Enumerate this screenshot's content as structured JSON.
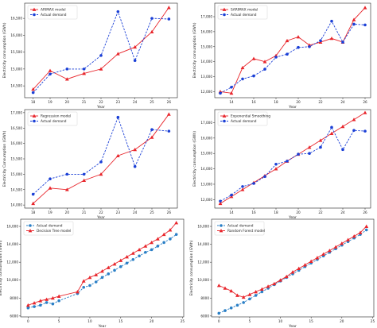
{
  "colors": {
    "model": "#e8252b",
    "actual": "#1a3fd6",
    "actual_light": "#2a7fc6"
  },
  "chart_data": [
    {
      "type": "line",
      "x": [
        18,
        19,
        20,
        21,
        22,
        23,
        24,
        25,
        26
      ],
      "series": [
        {
          "name": "ARIMAX model",
          "style": "solid-triangle",
          "values": [
            14400,
            14950,
            14700,
            14870,
            15000,
            15450,
            15650,
            16100,
            16820
          ]
        },
        {
          "name": "Actual demand",
          "style": "dashed-circle",
          "values": [
            14300,
            14850,
            15000,
            15000,
            15400,
            16700,
            15250,
            16500,
            16480
          ]
        }
      ],
      "xlabel": "Year",
      "ylabel": "Electricity consumption (GWh)",
      "xlim": [
        17.5,
        26.5
      ],
      "ylim": [
        14150,
        16950
      ],
      "xticks": [
        18,
        19,
        20,
        21,
        22,
        23,
        24,
        25,
        26
      ],
      "yticks": [
        14500,
        15000,
        15500,
        16000,
        16500
      ],
      "ytick_labels": [
        "14,500",
        "15,000",
        "15,500",
        "16,000",
        "16,500"
      ],
      "legend": "top-left"
    },
    {
      "type": "line",
      "x": [
        13,
        14,
        15,
        16,
        17,
        18,
        19,
        20,
        21,
        22,
        23,
        24,
        25,
        26
      ],
      "series": [
        {
          "name": "SARIMAX model",
          "style": "solid-triangle",
          "values": [
            12000,
            11900,
            13600,
            14200,
            14000,
            14400,
            15400,
            15650,
            15100,
            15300,
            15550,
            15300,
            16800,
            17600
          ]
        },
        {
          "name": "Actual demand",
          "style": "dashed-circle",
          "values": [
            11900,
            12300,
            12850,
            13050,
            13500,
            14300,
            14500,
            14950,
            15000,
            15400,
            16700,
            15300,
            16500,
            16450
          ]
        }
      ],
      "xlabel": "Year",
      "ylabel": "Electricity consumption (GWh)",
      "xlim": [
        12.5,
        26.5
      ],
      "ylim": [
        11600,
        17900
      ],
      "xticks": [
        14,
        16,
        18,
        20,
        22,
        24,
        26
      ],
      "yticks": [
        12000,
        13000,
        14000,
        15000,
        16000,
        17000
      ],
      "ytick_labels": [
        "12,000",
        "13,000",
        "14,000",
        "15,000",
        "16,000",
        "17,000"
      ],
      "legend": "top-left"
    },
    {
      "type": "line",
      "x": [
        18,
        19,
        20,
        21,
        22,
        23,
        24,
        25,
        26
      ],
      "series": [
        {
          "name": "Regression model",
          "style": "solid-triangle",
          "values": [
            14050,
            14550,
            14500,
            14800,
            15000,
            15600,
            15800,
            16200,
            16950
          ]
        },
        {
          "name": "Actual demand",
          "style": "dashed-circle",
          "values": [
            14350,
            14850,
            15000,
            15000,
            15400,
            16850,
            15250,
            16450,
            16400
          ]
        }
      ],
      "xlabel": "Year",
      "ylabel": "Electricity Consumption (GWh)",
      "xlim": [
        17.5,
        26.5
      ],
      "ylim": [
        13900,
        17100
      ],
      "xticks": [
        18,
        19,
        20,
        21,
        22,
        23,
        24,
        25,
        26
      ],
      "yticks": [
        14000,
        14500,
        15000,
        15500,
        16000,
        16500,
        17000
      ],
      "ytick_labels": [
        "14,000",
        "14,500",
        "15,000",
        "15,500",
        "16,000",
        "16,500",
        "17,000"
      ],
      "legend": "top-left"
    },
    {
      "type": "line",
      "x": [
        13,
        14,
        15,
        16,
        17,
        18,
        19,
        20,
        21,
        22,
        23,
        24,
        25,
        26
      ],
      "series": [
        {
          "name": "Exponential Smoothing",
          "style": "solid-triangle",
          "values": [
            11750,
            12200,
            12650,
            13100,
            13550,
            14000,
            14500,
            14950,
            15400,
            15850,
            16300,
            16750,
            17200,
            17650
          ]
        },
        {
          "name": "Actual demand",
          "style": "dashed-circle",
          "values": [
            11900,
            12300,
            12850,
            13050,
            13500,
            14300,
            14500,
            14950,
            15000,
            15400,
            16700,
            15250,
            16500,
            16450
          ]
        }
      ],
      "xlabel": "Year",
      "ylabel": "Electricity consumption (GWh)",
      "xlim": [
        12.5,
        26.5
      ],
      "ylim": [
        11450,
        17850
      ],
      "xticks": [
        14,
        16,
        18,
        20,
        22,
        24,
        26
      ],
      "yticks": [
        12000,
        13000,
        14000,
        15000,
        16000,
        17000
      ],
      "ytick_labels": [
        "12,000",
        "13,000",
        "14,000",
        "15,000",
        "16,000",
        "17,000"
      ],
      "legend": "top-left"
    },
    {
      "type": "line",
      "x": [
        0,
        1,
        2,
        3,
        4,
        5,
        8,
        9,
        10,
        11,
        12,
        13,
        14,
        15,
        16,
        17,
        18,
        19,
        20,
        21,
        22,
        23,
        24
      ],
      "series": [
        {
          "name": "Actual demand",
          "style": "dashed-circle",
          "values": [
            6900,
            7050,
            7200,
            7500,
            7350,
            7700,
            8500,
            9200,
            9400,
            9800,
            10300,
            10700,
            11100,
            11500,
            11900,
            12300,
            12700,
            13100,
            13400,
            13800,
            14200,
            14600,
            15100
          ]
        },
        {
          "name": "Decision Tree model",
          "style": "solid-triangle",
          "values": [
            7200,
            7450,
            7700,
            7850,
            8000,
            8200,
            8700,
            9900,
            10300,
            10600,
            11000,
            11400,
            11800,
            12200,
            12600,
            13000,
            13400,
            13800,
            14200,
            14600,
            15100,
            15600,
            16400
          ]
        }
      ],
      "xlabel": "Year",
      "ylabel": "Electricity consumption (GWh)",
      "xlim": [
        -1.2,
        25.2
      ],
      "ylim": [
        5900,
        16800
      ],
      "xticks": [
        0,
        5,
        10,
        15,
        20,
        25
      ],
      "yticks": [
        6000,
        8000,
        10000,
        12000,
        14000,
        16000
      ],
      "ytick_labels": [
        "6000",
        "8000",
        "10,000",
        "12,000",
        "14,000",
        "16,000"
      ],
      "legend": "top-left"
    },
    {
      "type": "line",
      "x": [
        0,
        1,
        2,
        3,
        4,
        5,
        6,
        7,
        8,
        9,
        10,
        11,
        12,
        13,
        14,
        15,
        16,
        17,
        18,
        19,
        20,
        21,
        22,
        23,
        24
      ],
      "series": [
        {
          "name": "Actual demand",
          "style": "dashed-circle",
          "values": [
            6300,
            6600,
            6900,
            7200,
            7500,
            7900,
            8300,
            8700,
            9100,
            9500,
            9900,
            10300,
            10700,
            11100,
            11500,
            11900,
            12300,
            12700,
            13100,
            13500,
            13900,
            14300,
            14700,
            15100,
            15600
          ]
        },
        {
          "name": "Random Forest model",
          "style": "solid-triangle",
          "values": [
            9400,
            9100,
            8800,
            8300,
            8100,
            8400,
            8700,
            9000,
            9300,
            9600,
            10000,
            10400,
            10900,
            11300,
            11700,
            12100,
            12500,
            12900,
            13300,
            13700,
            14100,
            14500,
            14900,
            15300,
            16000
          ]
        }
      ],
      "xlabel": "Year",
      "ylabel": "Electricity consumption (GWh)",
      "xlim": [
        -1.2,
        25.2
      ],
      "ylim": [
        5900,
        16800
      ],
      "xticks": [
        0,
        5,
        10,
        15,
        20,
        25
      ],
      "yticks": [
        6000,
        8000,
        10000,
        12000,
        14000,
        16000
      ],
      "ytick_labels": [
        "6000",
        "8000",
        "10,000",
        "12,000",
        "14,000",
        "16,000"
      ],
      "legend": "top-left"
    }
  ]
}
